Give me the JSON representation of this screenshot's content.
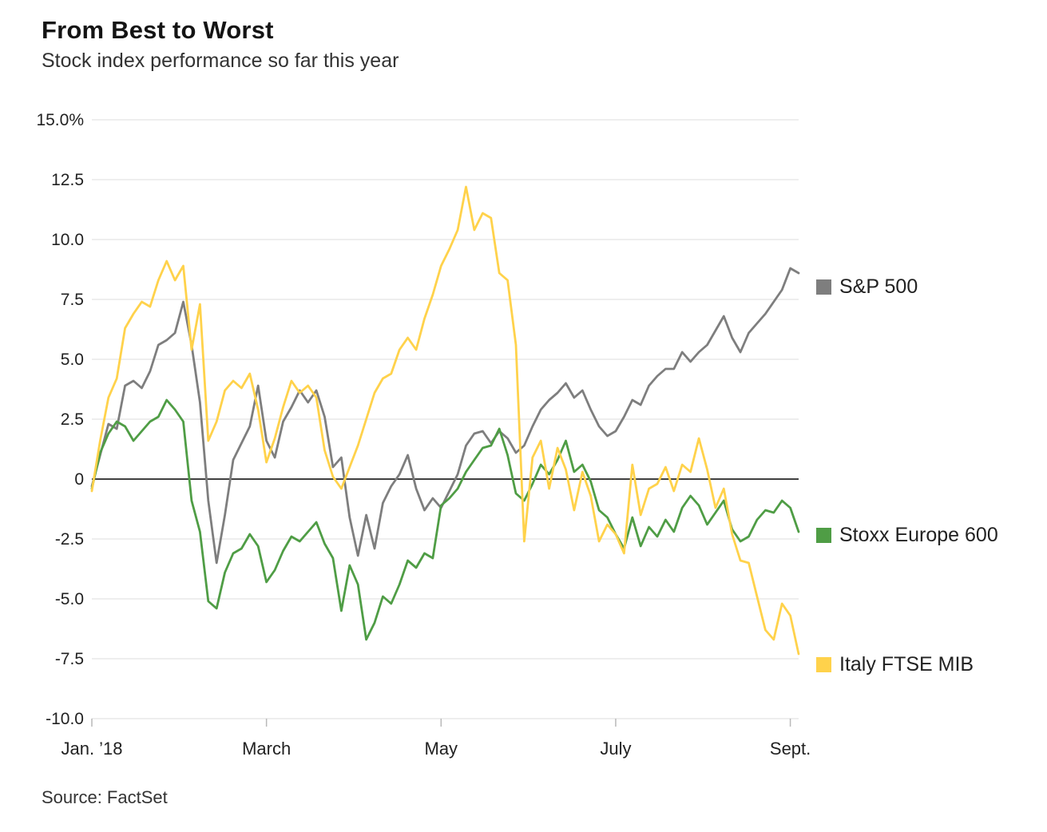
{
  "header": {
    "title": "From Best to Worst",
    "subtitle": "Stock index performance so far this year"
  },
  "source": "Source: FactSet",
  "legend": [
    {
      "label": "S&P 500",
      "color": "#7e7e7e"
    },
    {
      "label": "Stoxx Europe 600",
      "color": "#4f9d45"
    },
    {
      "label": "Italy FTSE MIB",
      "color": "#ffd24b"
    }
  ],
  "colors": {
    "grid": "#e4e4e4",
    "zero_line": "#000000",
    "tick": "#b9b9b9",
    "axis_text": "#222222"
  },
  "chart_data": {
    "type": "line",
    "title": "From Best to Worst",
    "subtitle": "Stock index performance so far this year",
    "unit": "%",
    "ylim": [
      -10,
      15
    ],
    "grid": true,
    "zero_line": true,
    "legend_position": "right",
    "y_ticks": [
      {
        "value": 15,
        "label": "15.0%"
      },
      {
        "value": 12.5,
        "label": "12.5"
      },
      {
        "value": 10,
        "label": "10.0"
      },
      {
        "value": 7.5,
        "label": "7.5"
      },
      {
        "value": 5,
        "label": "5.0"
      },
      {
        "value": 2.5,
        "label": "2.5"
      },
      {
        "value": 0,
        "label": "0"
      },
      {
        "value": -2.5,
        "label": "-2.5"
      },
      {
        "value": -5,
        "label": "-5.0"
      },
      {
        "value": -7.5,
        "label": "-7.5"
      },
      {
        "value": -10,
        "label": "-10.0"
      }
    ],
    "x_ticks": [
      {
        "index": 0,
        "label": "Jan. ’18"
      },
      {
        "index": 21,
        "label": "March"
      },
      {
        "index": 42,
        "label": "May"
      },
      {
        "index": 63,
        "label": "July"
      },
      {
        "index": 84,
        "label": "Sept."
      }
    ],
    "x_note": "daily observations, early January through early September 2018, sampled every ~2 trading days",
    "series": [
      {
        "name": "S&P 500",
        "color": "#7e7e7e",
        "values": [
          -0.3,
          1.0,
          2.3,
          2.1,
          3.9,
          4.1,
          3.8,
          4.5,
          5.6,
          5.8,
          6.1,
          7.4,
          5.6,
          3.2,
          -0.9,
          -3.5,
          -1.5,
          0.8,
          1.5,
          2.2,
          3.9,
          1.6,
          0.9,
          2.4,
          3.0,
          3.7,
          3.2,
          3.7,
          2.6,
          0.5,
          0.9,
          -1.6,
          -3.2,
          -1.5,
          -2.9,
          -1.0,
          -0.3,
          0.2,
          1.0,
          -0.4,
          -1.3,
          -0.8,
          -1.2,
          -0.5,
          0.2,
          1.4,
          1.9,
          2.0,
          1.5,
          2.0,
          1.7,
          1.1,
          1.4,
          2.2,
          2.9,
          3.3,
          3.6,
          4.0,
          3.4,
          3.7,
          2.9,
          2.2,
          1.8,
          2.0,
          2.6,
          3.3,
          3.1,
          3.9,
          4.3,
          4.6,
          4.6,
          5.3,
          4.9,
          5.3,
          5.6,
          6.2,
          6.8,
          5.9,
          5.3,
          6.1,
          6.5,
          6.9,
          7.4,
          7.9,
          8.8,
          8.6
        ]
      },
      {
        "name": "Stoxx Europe 600",
        "color": "#4f9d45",
        "values": [
          -0.4,
          1.1,
          1.9,
          2.4,
          2.2,
          1.6,
          2.0,
          2.4,
          2.6,
          3.3,
          2.9,
          2.4,
          -0.9,
          -2.2,
          -5.1,
          -5.4,
          -3.9,
          -3.1,
          -2.9,
          -2.3,
          -2.8,
          -4.3,
          -3.8,
          -3.0,
          -2.4,
          -2.6,
          -2.2,
          -1.8,
          -2.7,
          -3.3,
          -5.5,
          -3.6,
          -4.4,
          -6.7,
          -6.0,
          -4.9,
          -5.2,
          -4.4,
          -3.4,
          -3.7,
          -3.1,
          -3.3,
          -1.1,
          -0.8,
          -0.4,
          0.3,
          0.8,
          1.3,
          1.4,
          2.1,
          1.0,
          -0.6,
          -0.9,
          -0.2,
          0.6,
          0.2,
          0.8,
          1.6,
          0.3,
          0.6,
          -0.1,
          -1.3,
          -1.6,
          -2.3,
          -2.9,
          -1.6,
          -2.8,
          -2.0,
          -2.4,
          -1.7,
          -2.2,
          -1.2,
          -0.7,
          -1.1,
          -1.9,
          -1.4,
          -0.9,
          -2.1,
          -2.6,
          -2.4,
          -1.7,
          -1.3,
          -1.4,
          -0.9,
          -1.2,
          -2.2
        ]
      },
      {
        "name": "Italy FTSE MIB",
        "color": "#ffd24b",
        "values": [
          -0.5,
          1.6,
          3.4,
          4.2,
          6.3,
          6.9,
          7.4,
          7.2,
          8.3,
          9.1,
          8.3,
          8.9,
          5.4,
          7.3,
          1.6,
          2.4,
          3.7,
          4.1,
          3.8,
          4.4,
          2.9,
          0.7,
          1.7,
          3.0,
          4.1,
          3.6,
          3.9,
          3.4,
          1.2,
          0.1,
          -0.4,
          0.5,
          1.4,
          2.5,
          3.6,
          4.2,
          4.4,
          5.4,
          5.9,
          5.4,
          6.7,
          7.7,
          8.9,
          9.6,
          10.4,
          12.2,
          10.4,
          11.1,
          10.9,
          8.6,
          8.3,
          5.6,
          -2.6,
          0.9,
          1.6,
          -0.4,
          1.3,
          0.4,
          -1.3,
          0.3,
          -0.7,
          -2.6,
          -1.9,
          -2.3,
          -3.1,
          0.6,
          -1.5,
          -0.4,
          -0.2,
          0.5,
          -0.5,
          0.6,
          0.3,
          1.7,
          0.4,
          -1.2,
          -0.4,
          -2.3,
          -3.4,
          -3.5,
          -4.9,
          -6.3,
          -6.7,
          -5.2,
          -5.7,
          -7.3
        ]
      }
    ]
  }
}
